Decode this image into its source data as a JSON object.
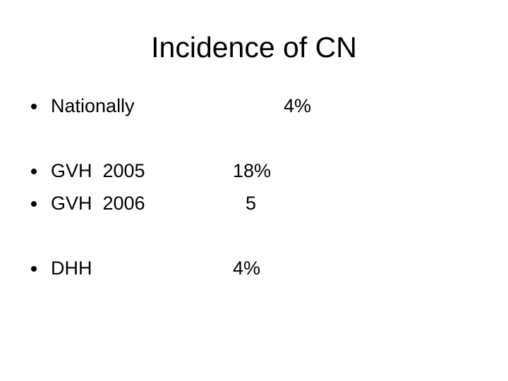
{
  "title": "Incidence of CN",
  "items": [
    {
      "label": "Nationally",
      "value": "4%"
    },
    {
      "label": "GVH  2005",
      "value": "18%"
    },
    {
      "label": "GVH  2006",
      "value": "5"
    },
    {
      "label": "DHH",
      "value": "4%"
    }
  ]
}
